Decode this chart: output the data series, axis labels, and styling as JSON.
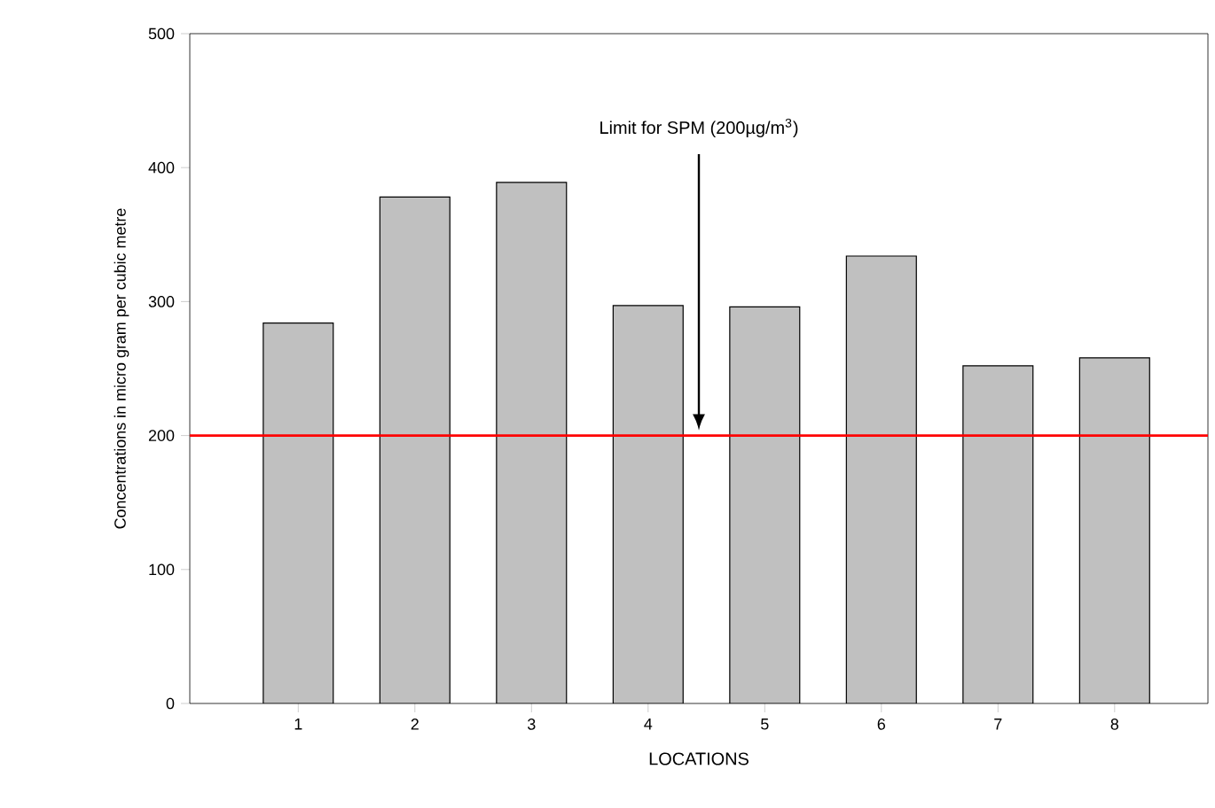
{
  "chart_data": {
    "type": "bar",
    "categories": [
      "1",
      "2",
      "3",
      "4",
      "5",
      "6",
      "7",
      "8"
    ],
    "values": [
      284,
      378,
      389,
      297,
      296,
      334,
      252,
      258
    ],
    "color": "#c0c0c0",
    "xlabel": "LOCATIONS",
    "ylabel": "Concentrations in micro gram per cubic metre",
    "ylim": [
      0,
      500
    ],
    "yticks": [
      0,
      100,
      200,
      300,
      400,
      500
    ],
    "annotations": [
      "Limit for SPM (200µg/m$^{3}$)"
    ],
    "ref_lines": [
      {
        "axis": "y",
        "value": 200,
        "color": "#ff0000"
      }
    ]
  }
}
